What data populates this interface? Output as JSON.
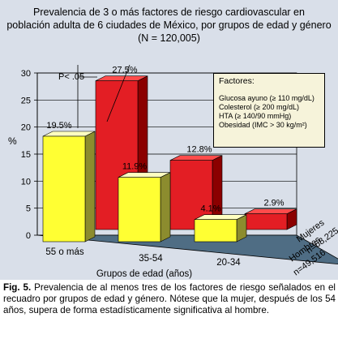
{
  "colors": {
    "background": "#d9dfe9",
    "floor": "#4f6d84",
    "mujeres_face": "#e31e24",
    "mujeres_side": "#8b0000",
    "mujeres_top": "#ff4b4b",
    "hombres_face": "#ffff33",
    "hombres_side": "#8c8c2e",
    "hombres_top": "#ffffc0",
    "legend_bg": "#f6f3da"
  },
  "title": {
    "line1": "Prevalencia de 3 o más factores de riesgo cardiovascular en",
    "line2": "población adulta de 6 ciudades de México, por grupos de edad y género",
    "line3": "(N = 120,005)"
  },
  "legend": {
    "title": "Factores:",
    "items": [
      "Glucosa ayuno (≥ 110 mg/dL)",
      "Colesterol (≥ 200 mg/dL)",
      "HTA (≥ 140/90 mmHg)",
      "Obesidad (IMC > 30 kg/m²)"
    ]
  },
  "annotation": "P< .05",
  "caption": {
    "label": "Fig. 5.",
    "text": " Prevalencia de al menos tres de los factores de riesgo señalados en el recuadro por grupos de edad y género. Nótese que la mujer, después de los 54 años, supera de forma estadísticamente significativa al hombre."
  },
  "chart_data": {
    "type": "bar",
    "xlabel": "Grupos de edad (años)",
    "ylabel": "%",
    "ylim": [
      0,
      30
    ],
    "yticks": [
      "0",
      "5",
      "10",
      "15",
      "20",
      "25",
      "30"
    ],
    "categories": [
      "55 o más",
      "35-54",
      "20-34"
    ],
    "series": [
      {
        "name": "Hombres",
        "axis_label": [
          "Hombres",
          "n=49,516"
        ],
        "values": [
          19.5,
          11.9,
          4.1
        ],
        "labels": [
          "19.5%",
          "11.9%",
          "4.1%"
        ]
      },
      {
        "name": "Mujeres",
        "axis_label": [
          "Mujeres",
          "n=68,225"
        ],
        "values": [
          27.5,
          12.8,
          2.9
        ],
        "labels": [
          "27.5%",
          "12.8%",
          "2.9%"
        ]
      }
    ],
    "grid": true,
    "legend_position": "top-right"
  }
}
